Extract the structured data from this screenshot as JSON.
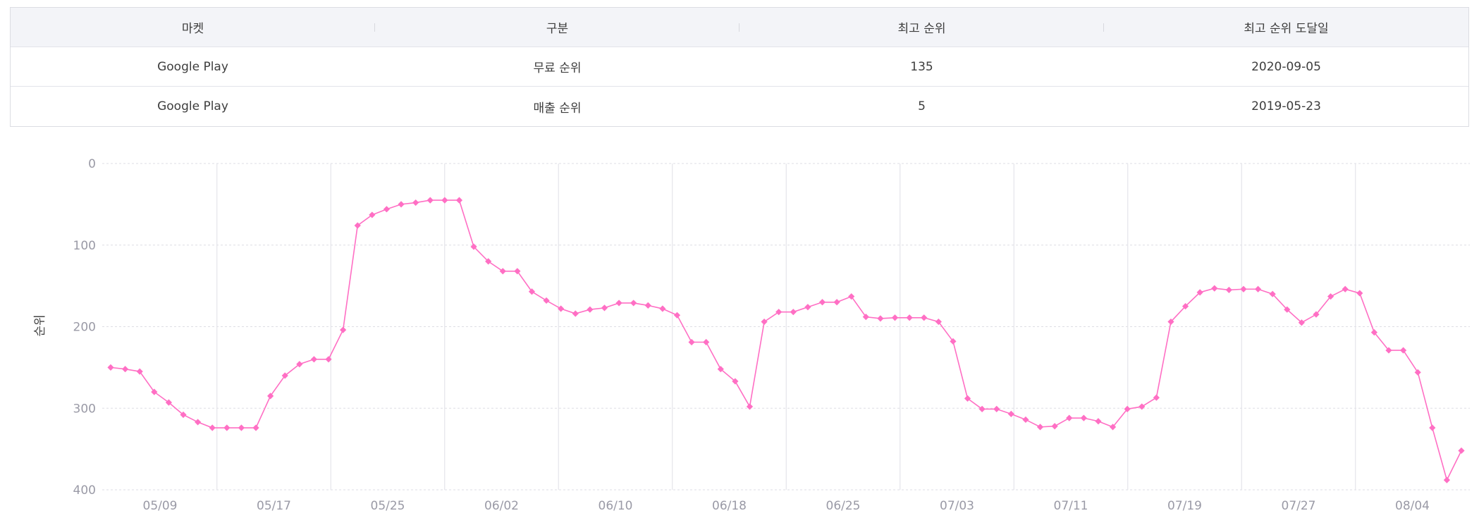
{
  "table": {
    "headers": [
      "마켓",
      "구분",
      "최고 순위",
      "최고 순위 도달일"
    ],
    "rows": [
      [
        "Google Play",
        "무료 순위",
        "135",
        "2020-09-05"
      ],
      [
        "Google Play",
        "매출 순위",
        "5",
        "2019-05-23"
      ]
    ]
  },
  "chart_data": {
    "type": "line",
    "ylabel": "순위",
    "y_reversed": true,
    "ylim": [
      0,
      400
    ],
    "y_ticks": [
      "0",
      "100",
      "200",
      "300",
      "400"
    ],
    "x_tick_labels": [
      "05/09",
      "05/17",
      "05/25",
      "06/02",
      "06/10",
      "06/18",
      "06/25",
      "07/03",
      "07/11",
      "07/19",
      "07/27",
      "08/04"
    ],
    "grid": true,
    "series": [
      {
        "color": "#ff6fc4",
        "values": [
          250,
          252,
          255,
          280,
          293,
          308,
          317,
          324,
          324,
          324,
          324,
          285,
          260,
          246,
          240,
          240,
          204,
          76,
          63,
          56,
          50,
          48,
          45,
          45,
          45,
          102,
          120,
          132,
          132,
          157,
          168,
          178,
          184,
          179,
          177,
          171,
          171,
          174,
          178,
          186,
          219,
          219,
          252,
          267,
          298,
          194,
          182,
          182,
          176,
          170,
          170,
          163,
          188,
          190,
          189,
          189,
          189,
          194,
          218,
          288,
          301,
          301,
          307,
          314,
          323,
          322,
          312,
          312,
          316,
          323,
          301,
          298,
          287,
          194,
          175,
          158,
          153,
          155,
          154,
          154,
          160,
          179,
          195,
          185,
          163,
          154,
          159,
          207,
          229,
          229,
          256,
          324,
          388,
          352
        ]
      }
    ]
  }
}
